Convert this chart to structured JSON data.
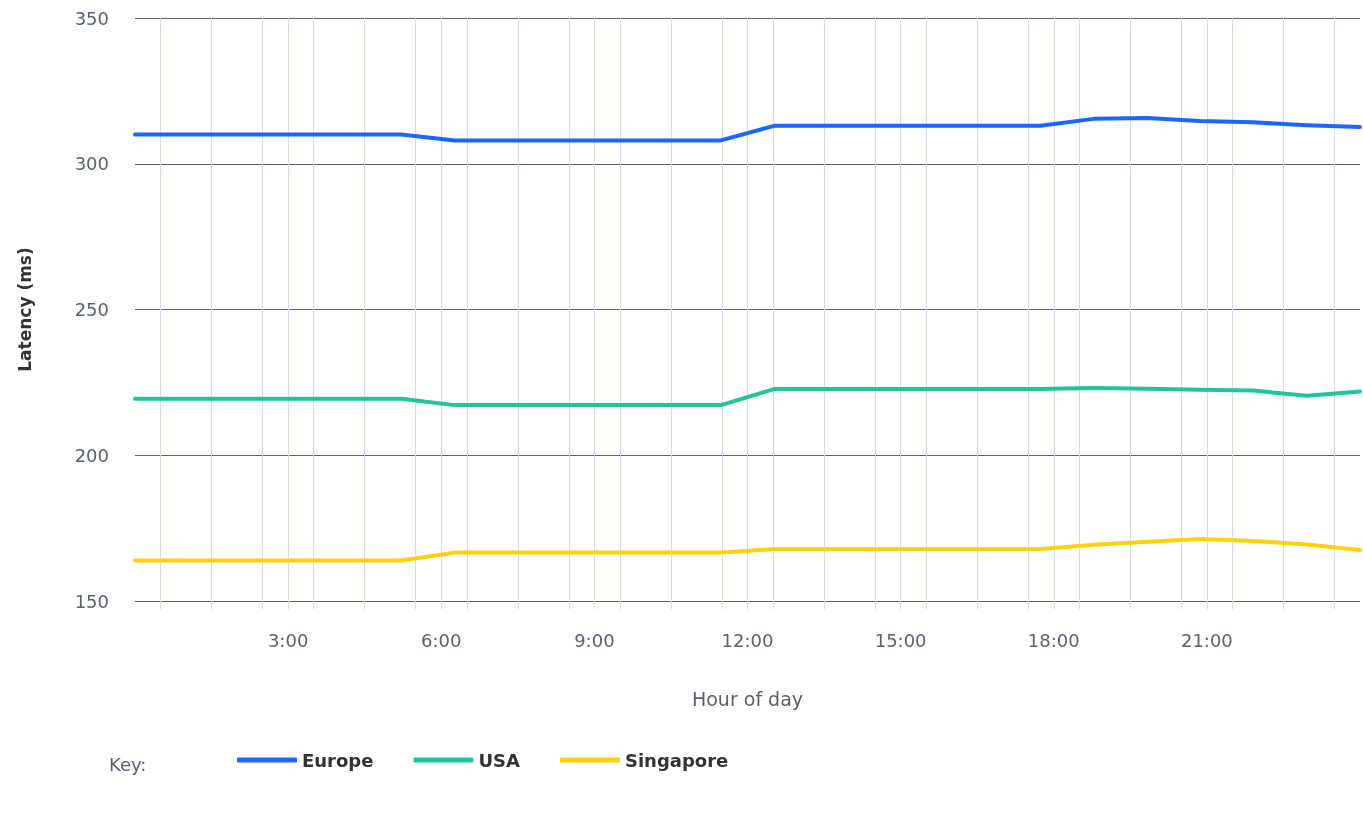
{
  "chart_data": {
    "type": "line",
    "xlabel": "Hour of day",
    "ylabel": "Latency (ms)",
    "legend_title": "Key:",
    "x": [
      0,
      1.04,
      2.09,
      3.13,
      4.17,
      5.22,
      6.26,
      7.3,
      8.35,
      9.39,
      10.43,
      11.48,
      12.52,
      13.57,
      14.61,
      15.65,
      16.7,
      17.74,
      18.78,
      19.83,
      20.87,
      21.91,
      22.96,
      24
    ],
    "series": [
      {
        "name": "Europe",
        "color": "#1a66ff",
        "values": [
          310,
          310,
          310,
          310,
          310,
          310,
          308,
          308,
          308,
          308,
          308,
          308,
          313,
          313,
          313,
          313,
          313,
          313,
          315.4,
          315.7,
          314.7,
          314.2,
          313.2,
          312.6
        ]
      },
      {
        "name": "USA",
        "color": "#1fc69b",
        "values": [
          219.4,
          219.4,
          219.4,
          219.4,
          219.4,
          219.4,
          217.2,
          217.2,
          217.2,
          217.2,
          217.2,
          217.2,
          222.7,
          222.7,
          222.7,
          222.7,
          222.7,
          222.7,
          223.1,
          222.8,
          222.5,
          222.2,
          220.4,
          221.9
        ]
      },
      {
        "name": "Singapore",
        "color": "#ffd10a",
        "values": [
          163.9,
          163.9,
          163.9,
          163.9,
          163.9,
          163.9,
          166.6,
          166.6,
          166.6,
          166.6,
          166.6,
          166.6,
          167.8,
          167.8,
          167.8,
          167.8,
          167.8,
          167.8,
          169.3,
          170.3,
          171.3,
          170.6,
          169.4,
          167.5
        ]
      }
    ],
    "xlim": [
      0,
      24
    ],
    "xticks": [
      {
        "value": 0.5,
        "label": null
      },
      {
        "value": 1.5,
        "label": null
      },
      {
        "value": 2.5,
        "label": null
      },
      {
        "value": 3,
        "label": "3:00"
      },
      {
        "value": 3.5,
        "label": null
      },
      {
        "value": 4.5,
        "label": null
      },
      {
        "value": 5.5,
        "label": null
      },
      {
        "value": 6,
        "label": "6:00"
      },
      {
        "value": 6.5,
        "label": null
      },
      {
        "value": 7.5,
        "label": null
      },
      {
        "value": 8.5,
        "label": null
      },
      {
        "value": 9,
        "label": "9:00"
      },
      {
        "value": 9.5,
        "label": null
      },
      {
        "value": 10.5,
        "label": null
      },
      {
        "value": 11.5,
        "label": null
      },
      {
        "value": 12,
        "label": "12:00"
      },
      {
        "value": 12.5,
        "label": null
      },
      {
        "value": 13.5,
        "label": null
      },
      {
        "value": 14.5,
        "label": null
      },
      {
        "value": 15,
        "label": "15:00"
      },
      {
        "value": 15.5,
        "label": null
      },
      {
        "value": 16.5,
        "label": null
      },
      {
        "value": 17.5,
        "label": null
      },
      {
        "value": 18,
        "label": "18:00"
      },
      {
        "value": 18.5,
        "label": null
      },
      {
        "value": 19.5,
        "label": null
      },
      {
        "value": 20.5,
        "label": null
      },
      {
        "value": 21,
        "label": "21:00"
      },
      {
        "value": 21.5,
        "label": null
      },
      {
        "value": 22.5,
        "label": null
      },
      {
        "value": 23.5,
        "label": null
      }
    ],
    "ylim": [
      150,
      350
    ],
    "yticks": [
      150,
      200,
      250,
      300,
      350
    ],
    "grid": true,
    "legend": "bottom left",
    "marker": "none",
    "line_style": "solid"
  }
}
